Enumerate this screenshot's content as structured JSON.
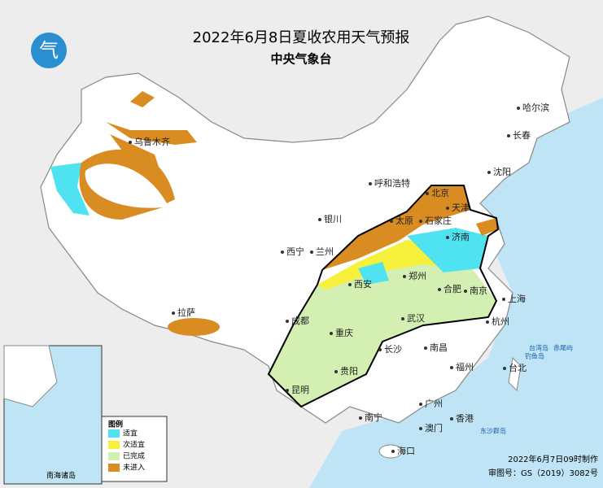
{
  "header": {
    "title": "2022年6月8日夏收农用天气预报",
    "subtitle": "中央气象台"
  },
  "cities": [
    "哈尔滨",
    "长春",
    "沈阳",
    "北京",
    "天津",
    "石家庄",
    "太原",
    "济南",
    "呼和浩特",
    "银川",
    "西宁",
    "兰州",
    "西安",
    "郑州",
    "合肥",
    "南京",
    "上海",
    "杭州",
    "武汉",
    "长沙",
    "南昌",
    "福州",
    "台北",
    "广州",
    "香港",
    "澳门",
    "南宁",
    "海口",
    "成都",
    "重庆",
    "贵阳",
    "昆明",
    "拉萨",
    "乌鲁木齐"
  ],
  "islands": [
    "台湾岛",
    "钓鱼岛",
    "赤尾屿",
    "东沙群岛"
  ],
  "legend": {
    "title": "图例",
    "items": [
      {
        "label": "适宜",
        "color": "#4fe3f2"
      },
      {
        "label": "次适宜",
        "color": "#f7f03a"
      },
      {
        "label": "已完成",
        "color": "#d3f0b2"
      },
      {
        "label": "未进入",
        "color": "#d98c22"
      }
    ]
  },
  "inset": {
    "label": "南海诸岛"
  },
  "footer": {
    "made": "2022年6月7日09时制作",
    "approval": "审图号：GS（2019）3082号"
  }
}
